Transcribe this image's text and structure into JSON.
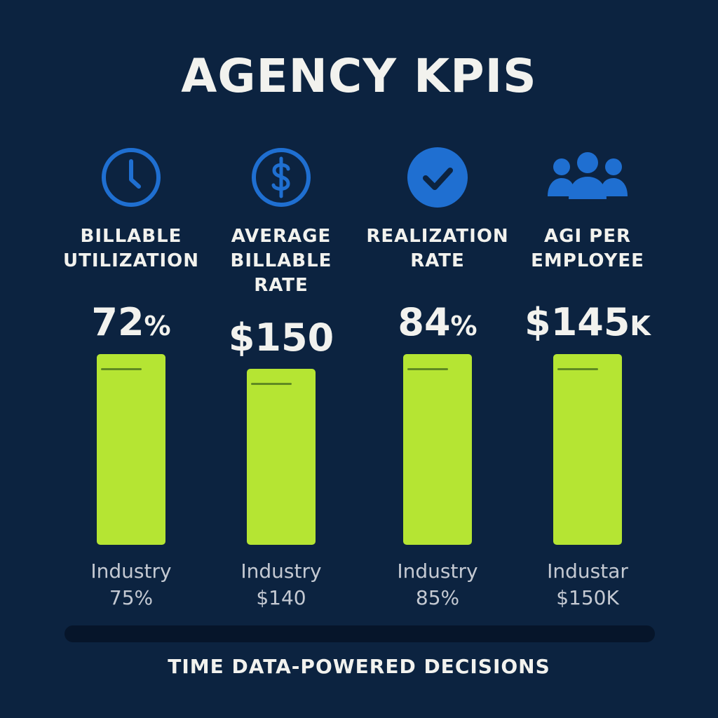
{
  "title": "AGENCY KPIS",
  "tagline": "TIME DATA-POWERED DECISIONS",
  "colors": {
    "background": "#0c2340",
    "accent_icon": "#1f6fd1",
    "bar": "#b5e533",
    "benchmark_line": "#5f8a22",
    "track": "#06152a"
  },
  "chart_data": {
    "type": "bar",
    "title": "AGENCY KPIS",
    "categories": [
      "BILLABLE UTILIZATION",
      "AVERAGE BILLABLE RATE",
      "REALIZATION RATE",
      "AGI PER EMPLOYEE"
    ],
    "series": [
      {
        "values": [
          72,
          150,
          84,
          145
        ]
      },
      {
        "values": [
          75,
          140,
          85,
          150
        ]
      }
    ]
  },
  "kpis": [
    {
      "icon": "clock-icon",
      "label_lines": [
        "BILLABLE",
        "UTILIZATION"
      ],
      "value_main": "72",
      "value_suffix": "%",
      "industry_lines": [
        "Industry",
        "75%"
      ]
    },
    {
      "icon": "dollar-icon",
      "label_lines": [
        "AVERAGE",
        "BILLABLE",
        "RATE"
      ],
      "value_main": "$150",
      "value_suffix": "",
      "industry_lines": [
        "Industry",
        "$140"
      ]
    },
    {
      "icon": "check-icon",
      "label_lines": [
        "REALIZATION",
        "RATE"
      ],
      "value_main": "84",
      "value_suffix": "%",
      "industry_lines": [
        "Industry",
        "85%"
      ]
    },
    {
      "icon": "people-icon",
      "label_lines": [
        "AGI PER",
        "EMPLOYEE"
      ],
      "value_main": "$145",
      "value_suffix": "K",
      "industry_lines": [
        "Industar",
        "$150K"
      ]
    }
  ]
}
